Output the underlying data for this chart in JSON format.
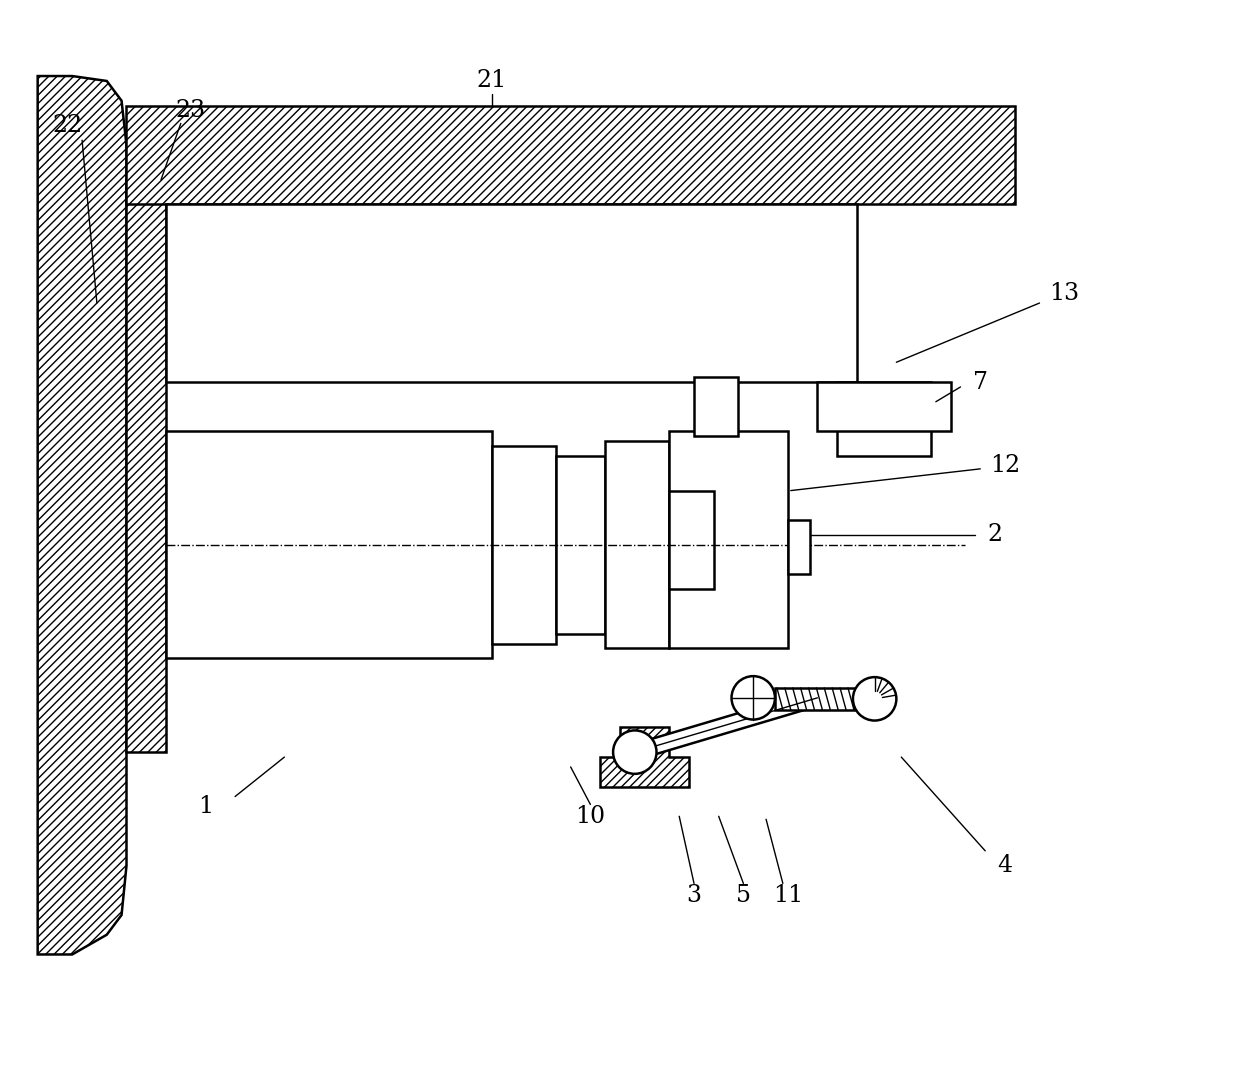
{
  "bg_color": "#ffffff",
  "line_color": "#000000",
  "fig_width": 12.4,
  "fig_height": 10.69,
  "lw": 1.8,
  "lw_thin": 1.0,
  "label_fs": 17
}
